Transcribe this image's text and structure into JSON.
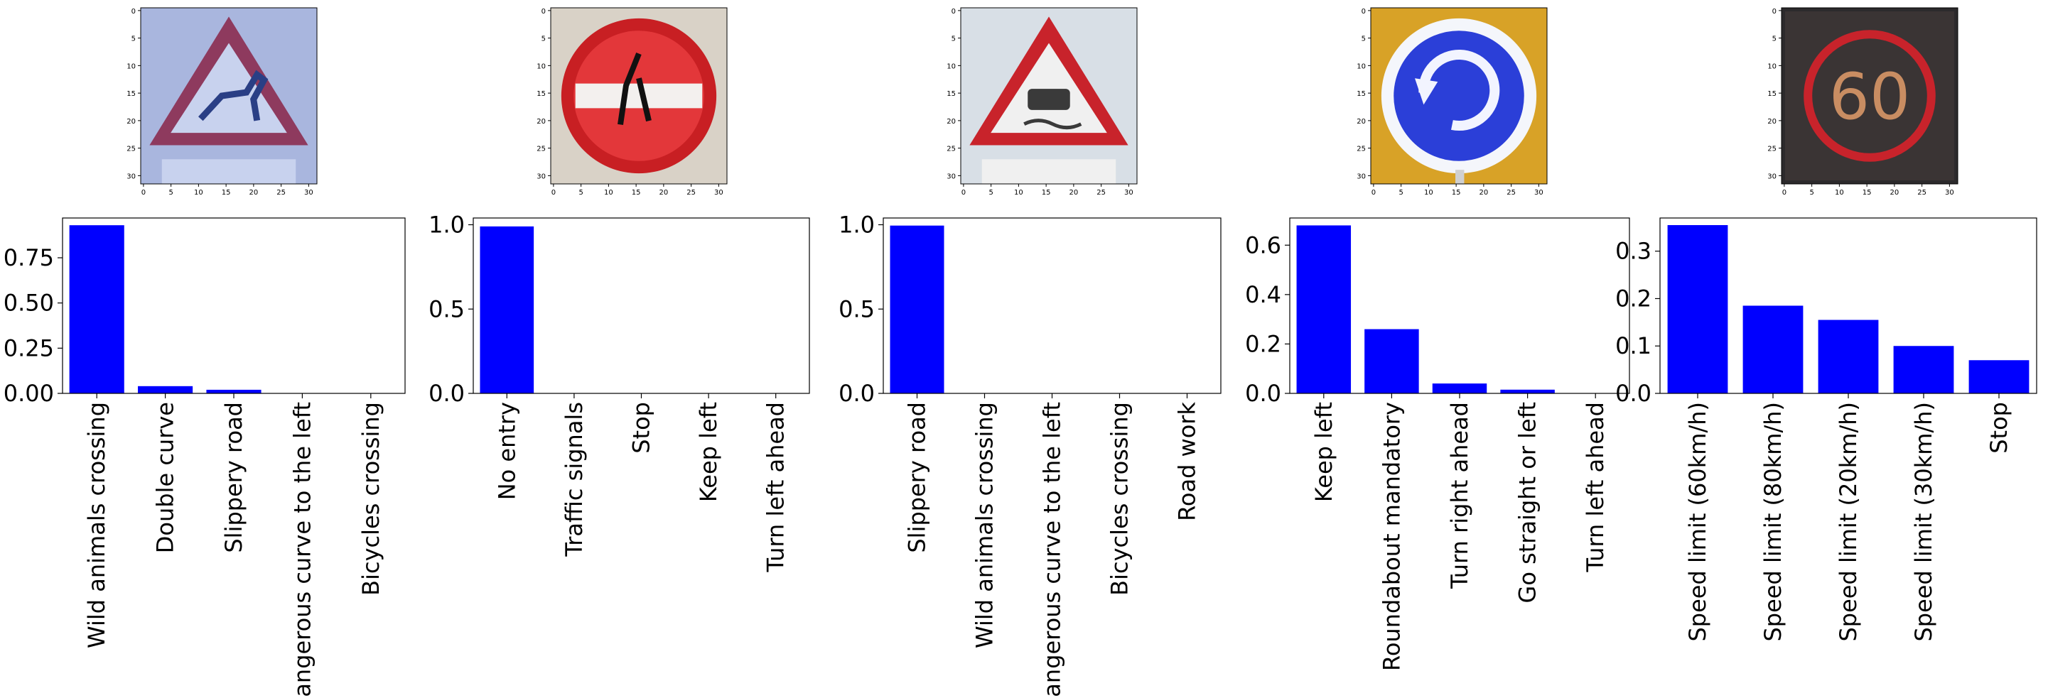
{
  "chart_data": [
    {
      "type": "bar",
      "categories": [
        "Wild animals crossing",
        "Double curve",
        "Slippery road",
        "Dangerous curve to the left",
        "Bicycles crossing"
      ],
      "values": [
        0.93,
        0.04,
        0.02,
        0.0,
        0.0
      ],
      "ylim": [
        0,
        0.97
      ],
      "yticks": [
        "0.00",
        "0.25",
        "0.50",
        "0.75"
      ],
      "ytick_values": [
        0,
        0.25,
        0.5,
        0.75
      ],
      "bar_color": "#0000ff",
      "image": {
        "axis_ticks": [
          "0",
          "5",
          "10",
          "15",
          "20",
          "25",
          "30"
        ],
        "axis_tick_values": [
          0,
          5,
          10,
          15,
          20,
          25,
          30
        ],
        "sign_shape": "triangle",
        "border": "#8e3a5e",
        "fill": "#c8d2ee",
        "symbol": "deer",
        "symbol_color": "#2a3f85",
        "background": "#a9b6de"
      }
    },
    {
      "type": "bar",
      "categories": [
        "No entry",
        "Traffic signals",
        "Stop",
        "Keep left",
        "Turn left ahead"
      ],
      "values": [
        0.99,
        0.0,
        0.0,
        0.0,
        0.0
      ],
      "ylim": [
        0,
        1.04
      ],
      "yticks": [
        "0.0",
        "0.5",
        "1.0"
      ],
      "ytick_values": [
        0,
        0.5,
        1.0
      ],
      "bar_color": "#0000ff",
      "image": {
        "axis_ticks": [
          "0",
          "5",
          "10",
          "15",
          "20",
          "25",
          "30"
        ],
        "axis_tick_values": [
          0,
          5,
          10,
          15,
          20,
          25,
          30
        ],
        "sign_shape": "circle",
        "border": "#c81f23",
        "fill": "#e3373a",
        "symbol": "bar",
        "symbol_color": "#f3f0ee",
        "background": "#d9d2c7"
      }
    },
    {
      "type": "bar",
      "categories": [
        "Slippery road",
        "Wild animals crossing",
        "Dangerous curve to the left",
        "Bicycles crossing",
        "Road work"
      ],
      "values": [
        0.995,
        0.0,
        0.0,
        0.0,
        0.0
      ],
      "ylim": [
        0,
        1.04
      ],
      "yticks": [
        "0.0",
        "0.5",
        "1.0"
      ],
      "ytick_values": [
        0,
        0.5,
        1.0
      ],
      "bar_color": "#0000ff",
      "image": {
        "axis_ticks": [
          "0",
          "5",
          "10",
          "15",
          "20",
          "25",
          "30"
        ],
        "axis_tick_values": [
          0,
          5,
          10,
          15,
          20,
          25,
          30
        ],
        "sign_shape": "triangle",
        "border": "#c8232b",
        "fill": "#f0f0f0",
        "symbol": "car",
        "symbol_color": "#3a3a3a",
        "background": "#d8dfe6"
      }
    },
    {
      "type": "bar",
      "categories": [
        "Keep left",
        "Roundabout mandatory",
        "Turn right ahead",
        "Go straight or left",
        "Turn left ahead"
      ],
      "values": [
        0.68,
        0.26,
        0.04,
        0.015,
        0.0
      ],
      "ylim": [
        0,
        0.71
      ],
      "yticks": [
        "0.0",
        "0.2",
        "0.4",
        "0.6"
      ],
      "ytick_values": [
        0,
        0.2,
        0.4,
        0.6
      ],
      "bar_color": "#0000ff",
      "image": {
        "axis_ticks": [
          "0",
          "5",
          "10",
          "15",
          "20",
          "25",
          "30"
        ],
        "axis_tick_values": [
          0,
          5,
          10,
          15,
          20,
          25,
          30
        ],
        "sign_shape": "circle",
        "border": "#f4f6fb",
        "fill": "#2b3fd8",
        "symbol": "roundabout",
        "symbol_color": "#f2f4ff",
        "background": "#d8a227"
      }
    },
    {
      "type": "bar",
      "categories": [
        "Speed limit (60km/h)",
        "Speed limit (80km/h)",
        "Speed limit (20km/h)",
        "Speed limit (30km/h)",
        "Stop"
      ],
      "values": [
        0.355,
        0.185,
        0.155,
        0.1,
        0.07
      ],
      "ylim": [
        0,
        0.37
      ],
      "yticks": [
        "0.0",
        "0.1",
        "0.2",
        "0.3"
      ],
      "ytick_values": [
        0,
        0.1,
        0.2,
        0.3
      ],
      "bar_color": "#0000ff",
      "image": {
        "axis_ticks": [
          "0",
          "5",
          "10",
          "15",
          "20",
          "25",
          "30"
        ],
        "axis_tick_values": [
          0,
          5,
          10,
          15,
          20,
          25,
          30
        ],
        "sign_shape": "digital",
        "border": "#c8232b",
        "fill": "#3a3434",
        "symbol": "60",
        "symbol_color": "#c98d62",
        "background": "#2c2a2c"
      }
    }
  ]
}
